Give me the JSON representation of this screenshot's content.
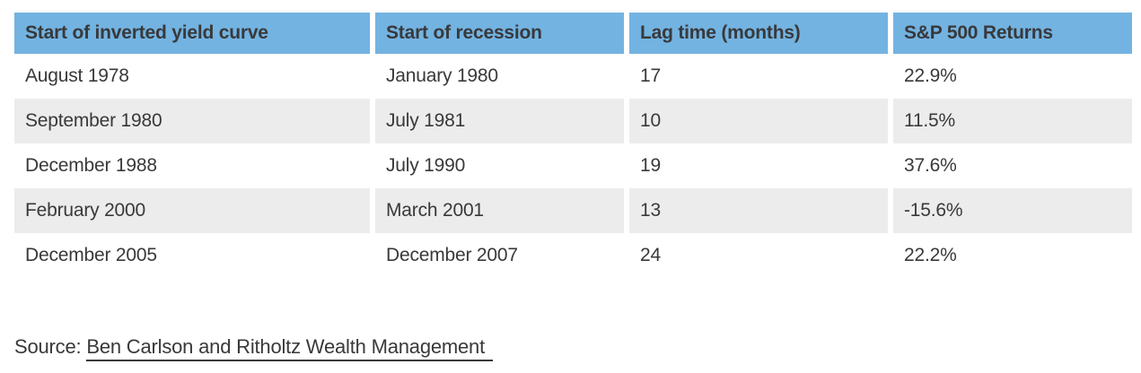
{
  "chart_data": {
    "type": "table",
    "columns": [
      "Start of inverted yield curve",
      "Start of recession",
      "Lag time (months)",
      "S&P 500 Returns"
    ],
    "rows": [
      [
        "August 1978",
        "January 1980",
        "17",
        "22.9%"
      ],
      [
        "September 1980",
        "July 1981",
        "10",
        "11.5%"
      ],
      [
        "December 1988",
        "July 1990",
        "19",
        "37.6%"
      ],
      [
        "February 2000",
        "March 2001",
        "13",
        "-15.6%"
      ],
      [
        "December 2005",
        "December 2007",
        "24",
        "22.2%"
      ]
    ],
    "lag_time_months": [
      17,
      10,
      19,
      13,
      24
    ],
    "sp500_returns_percent": [
      22.9,
      11.5,
      37.6,
      -15.6,
      22.2
    ],
    "legend_position": "none",
    "grid": false
  },
  "source_line": {
    "prefix": "Source: ",
    "link_label": "Ben Carlson and Ritholtz Wealth Management"
  },
  "colors": {
    "header_bg": "#73b3e1",
    "alt_row_bg": "#ececec",
    "text": "#38393b"
  }
}
